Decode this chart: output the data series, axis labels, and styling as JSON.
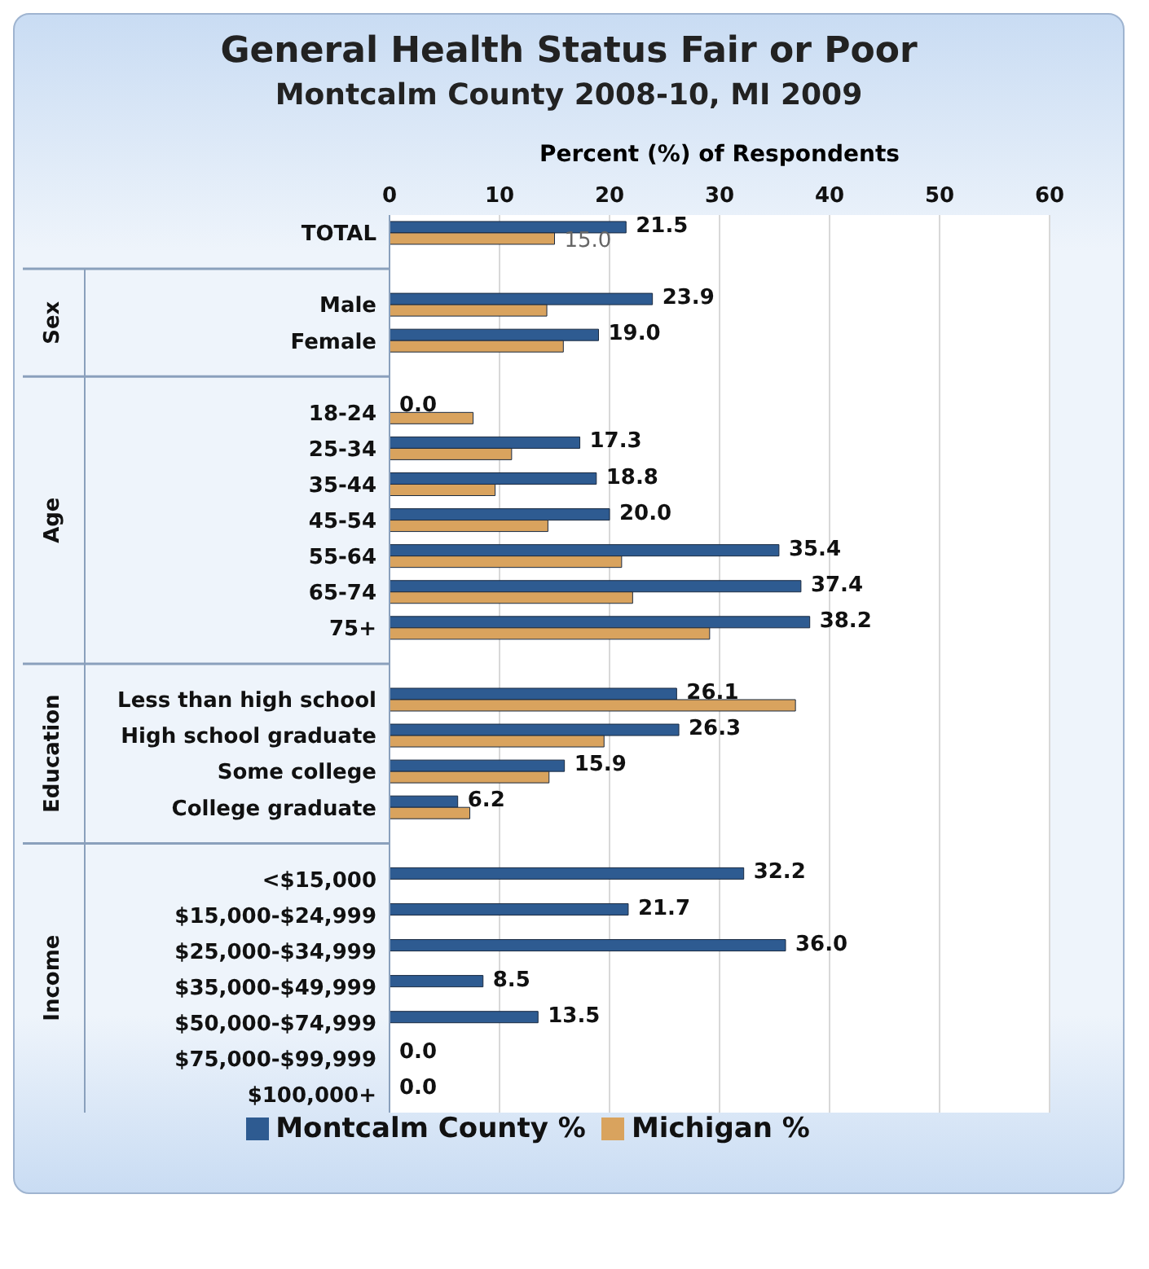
{
  "chart_data": {
    "type": "bar",
    "orientation": "horizontal",
    "title": "General Health Status Fair or Poor",
    "subtitle": "Montcalm County 2008-10, MI 2009",
    "xlabel": "Percent (%) of Respondents",
    "categories": [
      "TOTAL",
      null,
      "Male",
      "Female",
      null,
      "18-24",
      "25-34",
      "35-44",
      "45-54",
      "55-64",
      "65-74",
      "75+",
      null,
      "Less than high school",
      "High school graduate",
      "Some college",
      "College graduate",
      null,
      "<$15,000",
      "$15,000-$24,999",
      "$25,000-$34,999",
      "$35,000-$49,999",
      "$50,000-$74,999",
      "$75,000-$99,999",
      "$100,000+"
    ],
    "series": [
      {
        "name": "Montcalm County %",
        "color": "#2e5b91",
        "values": [
          21.5,
          null,
          23.9,
          19.0,
          null,
          0.0,
          17.3,
          18.8,
          20.0,
          35.4,
          37.4,
          38.2,
          null,
          26.1,
          26.3,
          15.9,
          6.2,
          null,
          32.2,
          21.7,
          36.0,
          8.5,
          13.5,
          0.0,
          0.0
        ],
        "value_labels": [
          "21.5",
          null,
          "23.9",
          "19.0",
          null,
          "0.0",
          "17.3",
          "18.8",
          "20.0",
          "35.4",
          "37.4",
          "38.2",
          null,
          "26.1",
          "26.3",
          "15.9",
          "6.2",
          null,
          "32.2",
          "21.7",
          "36.0",
          "8.5",
          "13.5",
          "0.0",
          "0.0"
        ]
      },
      {
        "name": "Michigan %",
        "color": "#d9a35e",
        "values": [
          15.0,
          null,
          14.3,
          15.8,
          null,
          7.6,
          11.1,
          9.6,
          14.4,
          21.1,
          22.1,
          29.1,
          null,
          36.9,
          19.5,
          14.5,
          7.3,
          null,
          null,
          null,
          null,
          null,
          null,
          null,
          null
        ],
        "value_labels": [
          "15.0",
          null,
          null,
          null,
          null,
          null,
          null,
          null,
          null,
          null,
          null,
          null,
          null,
          null,
          null,
          null,
          null,
          null,
          null,
          null,
          null,
          null,
          null,
          null,
          null
        ]
      }
    ],
    "annotations": [
      "Sex",
      "Age",
      "Education",
      "Income"
    ],
    "xlim": [
      0,
      60
    ],
    "xticks": [
      0,
      10,
      20,
      30,
      40,
      50,
      60
    ],
    "grid": "x",
    "legend": "bottom"
  }
}
